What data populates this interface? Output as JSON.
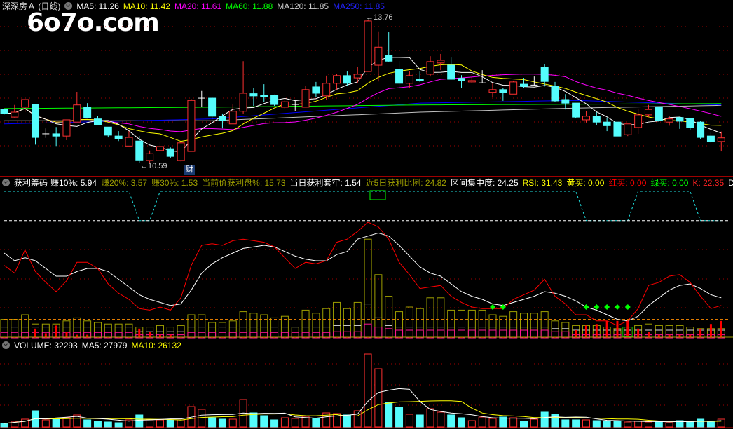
{
  "header_main": {
    "title": "深深房Ａ (日线)",
    "ma5": "MA5: 11.26",
    "ma10": "MA10: 11.42",
    "ma20": "MA20: 11.61",
    "ma60": "MA60: 11.88",
    "ma120": "MA120: 11.85",
    "ma250": "MA250: 11.85"
  },
  "header_indicator": {
    "name": "获利筹码",
    "earn10": "赚10%: 5.94",
    "earn20": "赚20%: 3.57",
    "earn30": "赚30%: 1.53",
    "profit_pct": "当前价获利盘%: 15.73",
    "day_trap": "当日获利套牢: 1.54",
    "ratio5": "近5日获利比例: 24.82",
    "concentration": "区间集中度: 24.25",
    "rsi": "RSI: 31.43",
    "yellow_buy": "黄买: 0.00",
    "red_buy": "红买: 0.00",
    "green_buy": "绿买: 0.00",
    "k": "K: 22.35",
    "d": "D:"
  },
  "header_volume": {
    "volume": "VOLUME: 32293",
    "ma5": "MA5: 27979",
    "ma10": "MA10: 26132"
  },
  "watermark": "6o7o.com",
  "annotations": {
    "low": "←10.59",
    "high": "←13.76",
    "finance_marker": "财"
  },
  "colors": {
    "up": "#ff3030",
    "down": "#54fcfc",
    "ma5": "#ffffff",
    "ma10": "#ffff00",
    "ma20": "#ff00ff",
    "ma60": "#00ff00",
    "ma120": "#c0c0c0",
    "ma250": "#0000ff",
    "olive": "#a0a000",
    "grid": "#a00000"
  },
  "chart_data": [
    {
      "type": "candlestick",
      "name": "price",
      "ohlc": [
        [
          11.77,
          11.77,
          11.66,
          11.68
        ],
        [
          11.6,
          11.87,
          11.59,
          11.71
        ],
        [
          11.82,
          11.99,
          11.71,
          11.99
        ],
        [
          11.88,
          11.88,
          10.99,
          11.15
        ],
        [
          11.23,
          11.35,
          11.14,
          11.23
        ],
        [
          11.23,
          11.38,
          10.96,
          11.18
        ],
        [
          11.18,
          11.54,
          11.09,
          11.54
        ],
        [
          11.49,
          12.16,
          11.49,
          11.87
        ],
        [
          11.82,
          11.91,
          11.59,
          11.59
        ],
        [
          11.56,
          11.62,
          11.43,
          11.43
        ],
        [
          11.38,
          11.38,
          11.15,
          11.2
        ],
        [
          11.18,
          11.29,
          11.07,
          11.12
        ],
        [
          10.96,
          11.29,
          10.96,
          11.15
        ],
        [
          11.07,
          11.18,
          10.59,
          10.65
        ],
        [
          10.64,
          10.86,
          10.59,
          10.79
        ],
        [
          10.86,
          11.06,
          10.86,
          10.95
        ],
        [
          10.9,
          10.93,
          10.7,
          10.73
        ],
        [
          10.64,
          11.06,
          10.62,
          11.03
        ],
        [
          10.84,
          12.0,
          10.84,
          11.97
        ],
        [
          12.02,
          12.18,
          11.82,
          12.02
        ],
        [
          12.02,
          12.05,
          11.55,
          11.62
        ],
        [
          11.62,
          11.68,
          11.35,
          11.52
        ],
        [
          11.45,
          11.88,
          11.45,
          11.73
        ],
        [
          11.73,
          12.84,
          11.68,
          12.13
        ],
        [
          12.12,
          12.25,
          11.85,
          12.07
        ],
        [
          12.08,
          12.33,
          11.94,
          12.05
        ],
        [
          12.08,
          12.1,
          11.85,
          11.88
        ],
        [
          11.82,
          12.02,
          11.79,
          11.94
        ],
        [
          11.88,
          11.97,
          11.74,
          11.88
        ],
        [
          11.82,
          12.29,
          11.82,
          12.21
        ],
        [
          12.27,
          12.38,
          12.05,
          12.13
        ],
        [
          12.07,
          12.52,
          11.99,
          12.35
        ],
        [
          12.35,
          12.56,
          12.21,
          12.52
        ],
        [
          12.52,
          12.61,
          12.3,
          12.35
        ],
        [
          12.47,
          12.72,
          12.36,
          12.55
        ],
        [
          12.61,
          13.76,
          12.61,
          13.73
        ],
        [
          12.75,
          13.5,
          12.39,
          13.15
        ],
        [
          12.97,
          13.48,
          12.83,
          12.84
        ],
        [
          12.66,
          12.84,
          12.25,
          12.35
        ],
        [
          12.35,
          12.61,
          12.24,
          12.52
        ],
        [
          12.44,
          12.61,
          12.38,
          12.41
        ],
        [
          12.55,
          12.95,
          12.5,
          12.83
        ],
        [
          12.8,
          13.0,
          12.64,
          12.86
        ],
        [
          12.75,
          12.92,
          12.43,
          12.44
        ],
        [
          12.46,
          12.53,
          12.25,
          12.41
        ],
        [
          12.38,
          12.51,
          12.36,
          12.41
        ],
        [
          12.36,
          12.64,
          12.35,
          12.36
        ],
        [
          12.15,
          12.35,
          12.04,
          12.21
        ],
        [
          12.21,
          12.24,
          11.96,
          12.15
        ],
        [
          12.11,
          12.41,
          12.11,
          12.38
        ],
        [
          12.33,
          12.47,
          12.25,
          12.28
        ],
        [
          12.31,
          12.5,
          12.3,
          12.31
        ],
        [
          12.7,
          12.77,
          12.28,
          12.39
        ],
        [
          12.28,
          12.38,
          11.94,
          11.96
        ],
        [
          11.99,
          12.11,
          11.77,
          11.91
        ],
        [
          11.91,
          11.91,
          11.57,
          11.6
        ],
        [
          11.54,
          11.74,
          11.48,
          11.62
        ],
        [
          11.62,
          11.71,
          11.42,
          11.49
        ],
        [
          11.49,
          11.59,
          11.29,
          11.41
        ],
        [
          11.49,
          11.49,
          11.18,
          11.18
        ],
        [
          11.21,
          11.45,
          11.18,
          11.45
        ],
        [
          11.37,
          11.79,
          11.23,
          11.65
        ],
        [
          11.65,
          11.87,
          11.6,
          11.77
        ],
        [
          11.83,
          11.83,
          11.5,
          11.52
        ],
        [
          11.49,
          11.63,
          11.41,
          11.56
        ],
        [
          11.59,
          11.59,
          11.34,
          11.51
        ],
        [
          11.57,
          11.57,
          11.32,
          11.37
        ],
        [
          11.49,
          11.52,
          11.11,
          11.15
        ],
        [
          11.18,
          11.26,
          11.03,
          11.06
        ],
        [
          11.06,
          11.28,
          10.84,
          11.14
        ]
      ],
      "ma_long": {
        "ma60": [
          [
            0,
            11.79
          ],
          [
            20,
            11.82
          ],
          [
            40,
            11.87
          ],
          [
            69,
            11.9
          ]
        ],
        "ma120": [
          [
            0,
            11.52
          ],
          [
            20,
            11.52
          ],
          [
            40,
            11.71
          ],
          [
            55,
            11.8
          ],
          [
            69,
            11.86
          ]
        ],
        "ma250": [
          [
            0,
            11.45
          ],
          [
            20,
            11.56
          ],
          [
            40,
            11.91
          ],
          [
            55,
            11.97
          ],
          [
            69,
            11.87
          ]
        ]
      },
      "high_label": 13.76,
      "low_label": 10.59
    },
    {
      "type": "line+bar",
      "name": "indicator",
      "red_line": [
        47,
        42,
        57,
        43,
        36,
        30,
        37,
        49,
        49,
        45,
        35,
        29,
        25,
        19,
        18,
        20,
        18,
        26,
        47,
        60,
        61,
        60,
        63,
        64,
        63,
        62,
        59,
        52,
        45,
        49,
        48,
        50,
        62,
        64,
        69,
        75,
        72,
        64,
        49,
        41,
        32,
        33,
        34,
        27,
        23,
        20,
        19,
        19,
        19,
        25,
        28,
        31,
        38,
        27,
        22,
        15,
        15,
        11,
        11,
        8,
        11,
        19,
        34,
        36,
        40,
        41,
        36,
        27,
        19,
        21
      ],
      "white_line": [
        55,
        50,
        52,
        50,
        45,
        40,
        40,
        43,
        45,
        45,
        43,
        38,
        33,
        28,
        25,
        23,
        21,
        22,
        31,
        42,
        48,
        52,
        55,
        58,
        59,
        60,
        59,
        56,
        53,
        51,
        50,
        50,
        54,
        56,
        64,
        66,
        68,
        66,
        60,
        53,
        46,
        42,
        40,
        35,
        30,
        27,
        25,
        22,
        21,
        23,
        25,
        27,
        30,
        29,
        27,
        24,
        20,
        18,
        15,
        12,
        11,
        14,
        21,
        26,
        31,
        34,
        35,
        32,
        28,
        26
      ],
      "olive_bars": [
        12,
        12,
        15,
        9,
        9,
        9,
        11,
        13,
        11,
        10,
        9,
        9,
        9,
        7,
        7,
        8,
        7,
        8,
        15,
        15,
        10,
        10,
        11,
        17,
        16,
        15,
        13,
        14,
        7,
        18,
        16,
        19,
        23,
        19,
        23,
        64,
        41,
        27,
        17,
        20,
        19,
        26,
        26,
        18,
        18,
        18,
        18,
        15,
        14,
        17,
        16,
        16,
        17,
        11,
        10,
        8,
        8,
        8,
        7,
        6,
        7,
        8,
        9,
        8,
        8,
        8,
        7,
        6,
        6,
        6
      ],
      "white_bars": [
        7,
        7,
        7,
        7,
        7,
        7,
        7,
        7,
        7,
        7,
        7,
        7,
        7,
        4,
        4,
        4,
        4,
        4,
        7,
        7,
        7,
        7,
        7,
        7,
        7,
        7,
        7,
        7,
        7,
        7,
        7,
        7,
        8,
        8,
        8,
        22,
        13,
        8,
        7,
        7,
        7,
        7,
        7,
        7,
        7,
        7,
        7,
        7,
        7,
        7,
        7,
        7,
        7,
        6,
        6,
        5,
        5,
        5,
        5,
        5,
        5,
        5,
        5,
        5,
        5,
        5,
        5,
        5,
        5,
        5
      ],
      "pink_bars": [
        3.5,
        3.5,
        3.5,
        3.5,
        3.5,
        3.5,
        3.5,
        3.5,
        3.5,
        3.5,
        3.5,
        3.5,
        3.5,
        2,
        2,
        2,
        2,
        2,
        3.5,
        3.5,
        3.5,
        3.5,
        3.5,
        3.5,
        3.5,
        3.5,
        3.5,
        3.5,
        3.5,
        3.5,
        3.5,
        3.5,
        4,
        4,
        4,
        9,
        7,
        6,
        5,
        5,
        5,
        5,
        5,
        5,
        5,
        5,
        5,
        5,
        5,
        5,
        5,
        5,
        5,
        4,
        4,
        2,
        2,
        2,
        2,
        2,
        2,
        2,
        2,
        2,
        2,
        2,
        2,
        2,
        2,
        2
      ],
      "red_bars": [
        0.5,
        0.5,
        0.5,
        6,
        3,
        8,
        4,
        2,
        2,
        0.5,
        0.5,
        0.5,
        0.5,
        6,
        4,
        2,
        2,
        0.5,
        0.5,
        0.5,
        0.5,
        0.5,
        0.5,
        0.5,
        0.5,
        0.5,
        0.5,
        0.5,
        0.5,
        0.5,
        0.5,
        0.5,
        0.5,
        0.5,
        0.5,
        0.5,
        0.5,
        0.5,
        0.5,
        0.5,
        0.5,
        0.5,
        0.5,
        0.5,
        0.5,
        0.5,
        0.5,
        0.5,
        0.5,
        0.5,
        0.5,
        0.5,
        0.5,
        0.5,
        0.5,
        5,
        8,
        9,
        11,
        11,
        11,
        6,
        4,
        2,
        2,
        2,
        2,
        6,
        9,
        11
      ],
      "cyan_state": [
        1,
        1,
        1,
        1,
        1,
        1,
        1,
        1,
        1,
        1,
        1,
        1,
        1,
        0,
        0,
        1,
        1,
        1,
        1,
        1,
        1,
        1,
        1,
        1,
        1,
        1,
        1,
        1,
        1,
        1,
        1,
        1,
        1,
        1,
        1,
        1,
        1,
        1,
        1,
        1,
        1,
        1,
        1,
        1,
        1,
        1,
        1,
        1,
        1,
        1,
        1,
        1,
        1,
        1,
        1,
        1,
        0,
        0,
        0,
        0,
        0,
        1,
        1,
        1,
        1,
        1,
        1,
        0,
        0,
        0
      ],
      "cyan_high": 95,
      "cyan_low": 76,
      "white_dash_level": 76,
      "orange_dash_level": 12,
      "green_diamonds": [
        47,
        48,
        56,
        57,
        58,
        59,
        60
      ],
      "diamond_level": 20
    },
    {
      "type": "bar",
      "name": "VOLUME",
      "values": [
        14700,
        23500,
        32300,
        67500,
        29400,
        35200,
        38200,
        49900,
        29400,
        23500,
        20600,
        17600,
        29400,
        49900,
        29400,
        29400,
        29400,
        29400,
        85100,
        73400,
        38200,
        32300,
        32300,
        114500,
        58700,
        47000,
        29400,
        38200,
        35200,
        44000,
        35200,
        58700,
        55800,
        49900,
        67500,
        305300,
        243700,
        102800,
        82200,
        52800,
        49900,
        76300,
        61700,
        49900,
        38200,
        26400,
        41100,
        35200,
        41100,
        38200,
        23500,
        32300,
        61700,
        52800,
        29400,
        29400,
        29400,
        26400,
        23500,
        23500,
        20600,
        23500,
        20600,
        23500,
        17600,
        26400,
        20600,
        32300,
        20600,
        32293
      ]
    }
  ]
}
